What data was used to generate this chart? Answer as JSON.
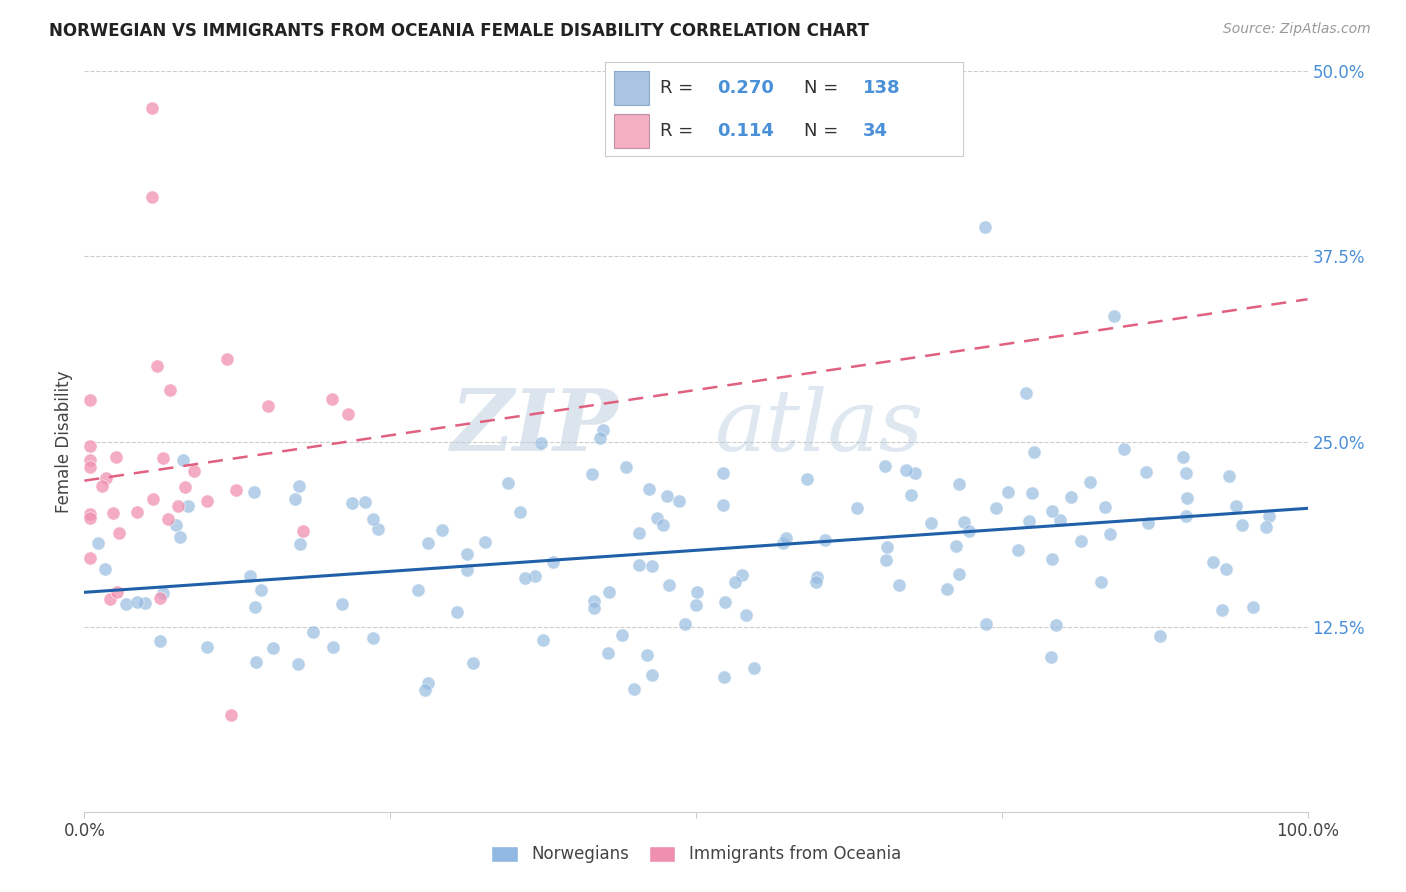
{
  "title": "NORWEGIAN VS IMMIGRANTS FROM OCEANIA FEMALE DISABILITY CORRELATION CHART",
  "source": "Source: ZipAtlas.com",
  "ylabel": "Female Disability",
  "xlim": [
    0,
    1
  ],
  "ylim": [
    0,
    0.5
  ],
  "watermark_zip": "ZIP",
  "watermark_atlas": "atlas",
  "legend_R1": "0.270",
  "legend_N1": "138",
  "legend_R2": "0.114",
  "legend_N2": "34",
  "blue_legend_color": "#aac4e2",
  "pink_legend_color": "#f4afc2",
  "blue_line_color": "#2060a8",
  "pink_line_color": "#e06080",
  "blue_scatter_color": "#90b8e0",
  "pink_scatter_color": "#f090b0",
  "background_color": "#ffffff",
  "grid_color": "#cccccc",
  "right_tick_color": "#4a90d9",
  "title_color": "#222222",
  "label_color": "#444444",
  "source_color": "#999999"
}
